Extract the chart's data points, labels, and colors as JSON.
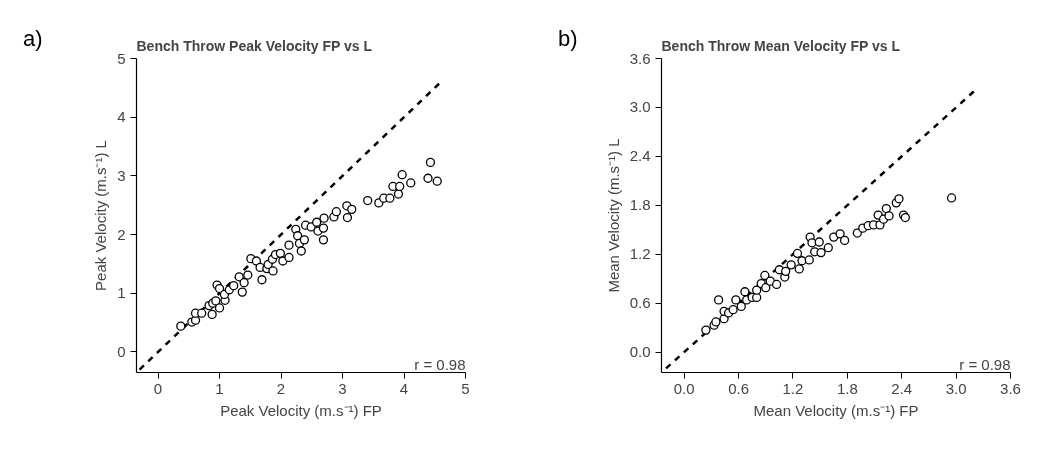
{
  "chart_data": [
    {
      "type": "scatter",
      "title": "Bench Throw Peak Velocity FP vs L",
      "xlabel": "Peak Velocity (m.s⁻¹) FP",
      "ylabel": "Peak Velocity (m.s⁻¹) L",
      "annotations": [
        "a)",
        "r = 0.98"
      ],
      "xlim": [
        -0.35,
        5
      ],
      "ylim": [
        -0.35,
        5
      ],
      "xticks": [
        0,
        1,
        2,
        3,
        4,
        5
      ],
      "yticks": [
        0,
        1,
        2,
        3,
        4,
        5
      ],
      "grid": false,
      "series": [
        {
          "marker": "circle",
          "color": "#000000",
          "x": [
            0.37,
            0.55,
            0.61,
            0.61,
            0.71,
            0.88,
            0.83,
            0.89,
            0.94,
            1.0,
            0.96,
            1.0,
            1.09,
            1.08,
            1.16,
            1.23,
            1.32,
            1.37,
            1.4,
            1.46,
            1.51,
            1.6,
            1.66,
            1.69,
            1.77,
            1.79,
            1.87,
            1.86,
            1.91,
            1.99,
            2.03,
            2.13,
            2.13,
            2.24,
            2.27,
            2.3,
            2.33,
            2.38,
            2.4,
            2.49,
            2.58,
            2.6,
            2.69,
            2.69,
            2.7,
            2.86,
            2.9,
            3.07,
            3.08,
            3.15,
            3.41,
            3.59,
            3.67,
            3.77,
            3.82,
            3.91,
            3.93,
            3.97,
            4.11,
            4.39,
            4.43,
            4.54
          ],
          "values": [
            0.44,
            0.51,
            0.54,
            0.66,
            0.66,
            0.64,
            0.79,
            0.83,
            0.87,
            0.75,
            1.14,
            1.08,
            0.88,
            0.98,
            1.06,
            1.13,
            1.28,
            1.02,
            1.18,
            1.31,
            1.59,
            1.55,
            1.44,
            1.23,
            1.42,
            1.49,
            1.38,
            1.58,
            1.66,
            1.68,
            1.55,
            1.61,
            1.82,
            2.09,
            1.98,
            1.85,
            1.72,
            1.91,
            2.16,
            2.13,
            2.21,
            2.06,
            1.91,
            2.11,
            2.28,
            2.3,
            2.39,
            2.49,
            2.29,
            2.43,
            2.58,
            2.54,
            2.62,
            2.62,
            2.82,
            2.69,
            2.82,
            3.02,
            2.88,
            2.96,
            3.23,
            2.91
          ]
        },
        {
          "type": "line",
          "line_style": "dashed",
          "marker": "none",
          "color": "#000000",
          "x": [
            -0.3,
            4.6
          ],
          "values": [
            -0.3,
            4.6
          ]
        }
      ]
    },
    {
      "type": "scatter",
      "title": "Bench Throw Mean Velocity FP vs L",
      "xlabel": "Mean Velocity (m.s⁻¹) FP",
      "ylabel": "Mean Velocity (m.s⁻¹) L",
      "annotations": [
        "b)",
        "r = 0.98"
      ],
      "xlim": [
        -0.25,
        3.6
      ],
      "ylim": [
        -0.25,
        3.6
      ],
      "xticks": [
        {
          "value": 0,
          "label": "0.0"
        },
        0.6,
        1.2,
        1.8,
        2.4,
        {
          "value": 3,
          "label": "3.0"
        },
        3.6
      ],
      "yticks": [
        {
          "value": 0,
          "label": "0.0"
        },
        0.6,
        1.2,
        1.8,
        2.4,
        {
          "value": 3,
          "label": "3.0"
        },
        3.6
      ],
      "grid": false,
      "series": [
        {
          "marker": "circle",
          "color": "#000000",
          "x": [
            0.24,
            0.33,
            0.35,
            0.38,
            0.44,
            0.44,
            0.49,
            0.54,
            0.57,
            0.63,
            0.67,
            0.69,
            0.75,
            0.8,
            0.8,
            0.85,
            0.9,
            0.89,
            0.95,
            1.02,
            1.05,
            1.11,
            1.12,
            1.18,
            1.25,
            1.27,
            1.3,
            1.38,
            1.39,
            1.41,
            1.44,
            1.49,
            1.51,
            1.59,
            1.65,
            1.72,
            1.77,
            1.91,
            1.97,
            2.03,
            2.09,
            2.14,
            2.16,
            2.2,
            2.23,
            2.26,
            2.34,
            2.37,
            2.42,
            2.44,
            2.95
          ],
          "values": [
            0.27,
            0.33,
            0.37,
            0.64,
            0.41,
            0.5,
            0.48,
            0.52,
            0.64,
            0.56,
            0.74,
            0.64,
            0.67,
            0.67,
            0.76,
            0.84,
            0.79,
            0.94,
            0.87,
            0.83,
            1.01,
            0.92,
            0.99,
            1.07,
            1.21,
            1.02,
            1.12,
            1.13,
            1.41,
            1.34,
            1.23,
            1.35,
            1.22,
            1.28,
            1.41,
            1.45,
            1.37,
            1.46,
            1.52,
            1.55,
            1.56,
            1.68,
            1.56,
            1.63,
            1.76,
            1.67,
            1.83,
            1.88,
            1.68,
            1.65,
            1.89
          ]
        },
        {
          "type": "line",
          "line_style": "dashed",
          "marker": "none",
          "color": "#000000",
          "x": [
            -0.2,
            3.2
          ],
          "values": [
            -0.2,
            3.2
          ]
        }
      ]
    }
  ]
}
